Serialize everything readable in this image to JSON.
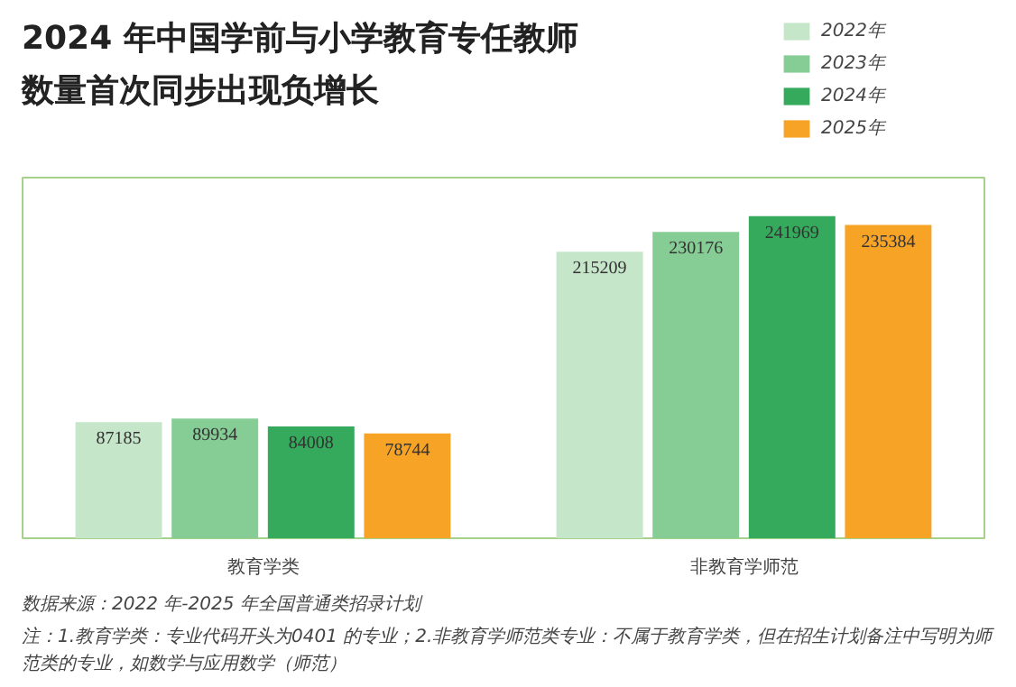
{
  "chart_data": {
    "type": "bar",
    "title": "2024 年中国学前与小学教育专任教师数量首次同步出现负增长",
    "categories": [
      "教育学类",
      "非教育学师范"
    ],
    "series": [
      {
        "name": "2022年",
        "color": "#c5e6c9",
        "values": [
          87185,
          215209
        ]
      },
      {
        "name": "2023年",
        "color": "#86cc95",
        "values": [
          89934,
          230176
        ]
      },
      {
        "name": "2024年",
        "color": "#35a95c",
        "values": [
          84008,
          241969
        ]
      },
      {
        "name": "2025年",
        "color": "#f7a325",
        "values": [
          78744,
          235384
        ]
      }
    ],
    "data_labels": true,
    "legend": "top right",
    "grid": false,
    "annotations": [
      "数据来源：2022 年-2025 年全国普通类招录计划",
      "注：1.教育学类：专业代码开头为0401 的专业；2.非教育学师范类专业：不属于教育学类，但在招生计划备注中写明为师范类的专业，如数学与应用数学（师范）"
    ]
  }
}
